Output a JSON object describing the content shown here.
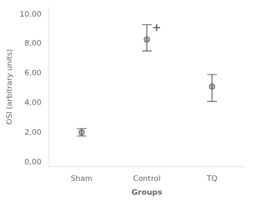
{
  "chart_data": {
    "type": "scatter",
    "xlabel": "Groups",
    "ylabel": "OSI (arbitrary units)",
    "categories": [
      "Sham",
      "Control",
      "TQ"
    ],
    "values": [
      2.02,
      8.3,
      5.12
    ],
    "ci_lower": [
      1.78,
      7.52,
      4.12
    ],
    "ci_upper": [
      2.28,
      9.3,
      5.93
    ],
    "outliers": [
      {
        "category": "Control",
        "value": 9.1
      }
    ],
    "color": "#505050",
    "marker": "circle",
    "ylim": [
      -0.3,
      10.5
    ],
    "yticks": [
      {
        "value": 0,
        "label": "0,00"
      },
      {
        "value": 2,
        "label": "2,00"
      },
      {
        "value": 4,
        "label": "4,00"
      },
      {
        "value": 6,
        "label": "6,00"
      },
      {
        "value": 8,
        "label": "8,00"
      },
      {
        "value": 10,
        "label": "10,00"
      }
    ],
    "grid": false
  }
}
